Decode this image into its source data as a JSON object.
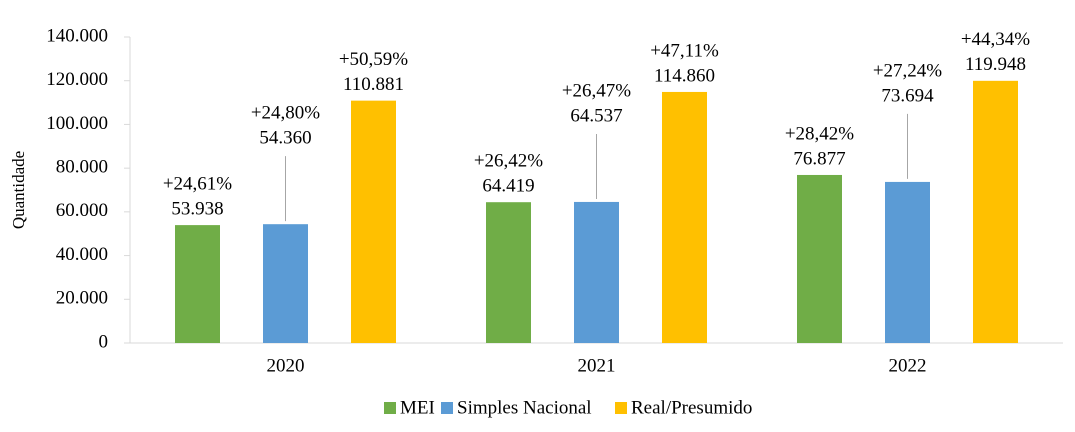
{
  "chart_data": {
    "type": "bar",
    "y_label": "Quantidade",
    "categories": [
      "2020",
      "2021",
      "2022"
    ],
    "series": [
      {
        "name": "MEI",
        "color": "#70ad47",
        "values": [
          53938,
          64419,
          76877
        ],
        "value_labels": [
          "53.938",
          "64.419",
          "76.877"
        ],
        "annotations": [
          "+24,61%",
          "+26,42%",
          "+28,42%"
        ]
      },
      {
        "name": "Simples Nacional",
        "color": "#5b9bd5",
        "values": [
          54360,
          64537,
          73694
        ],
        "value_labels": [
          "54.360",
          "64.537",
          "73.694"
        ],
        "annotations": [
          "+24,80%",
          "+26,47%",
          "+27,24%"
        ]
      },
      {
        "name": "Real/Presumido",
        "color": "#ffc000",
        "values": [
          110881,
          114860,
          119948
        ],
        "value_labels": [
          "110.881",
          "114.860",
          "119.948"
        ],
        "annotations": [
          "+50,59%",
          "+47,11%",
          "+44,34%"
        ]
      }
    ],
    "ylim": [
      0,
      140000
    ],
    "yticks": [
      0,
      {
        "value": 20000,
        "label": "20.000"
      },
      {
        "value": 40000,
        "label": "40.000"
      },
      {
        "value": 60000,
        "label": "60.000"
      },
      {
        "value": 80000,
        "label": "80.000"
      },
      {
        "value": 100000,
        "label": "100.000"
      },
      {
        "value": 120000,
        "label": "120.000"
      },
      {
        "value": 140000,
        "label": "140.000"
      }
    ],
    "legend": "bottom"
  }
}
